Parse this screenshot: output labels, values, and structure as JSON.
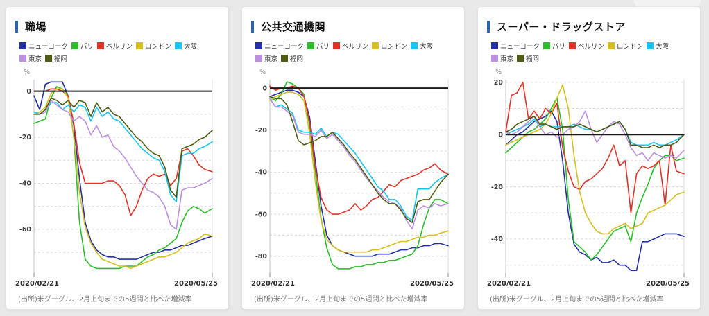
{
  "page_background": "#e9e9ea",
  "accent_color": "#2a66ad",
  "x_tick_labels": [
    "2020/02/21",
    "2020/05/25"
  ],
  "source_note": "(出所)米グーグル、2月上旬までの5週間と比べた増減率",
  "chart_data": [
    {
      "type": "line",
      "title": "職場",
      "ylabel": "%",
      "x_unit": "days since 2020/02/21",
      "x_tick_labels": [
        "2020/02/21",
        "2020/05/25"
      ],
      "source": "(出所)米グーグル、2月上旬までの5週間と比べた増減率",
      "y_ticks": [
        0,
        -20,
        -40,
        -60
      ],
      "ylim": [
        5,
        -79
      ],
      "grid_interval": 10,
      "x": [
        0,
        3,
        6,
        9,
        12,
        15,
        18,
        21,
        24,
        27,
        30,
        33,
        36,
        39,
        42,
        45,
        48,
        51,
        54,
        57,
        60,
        63,
        66,
        69,
        72,
        75,
        78,
        81,
        84,
        87,
        90,
        94
      ],
      "series": [
        {
          "name": "ニューヨーク",
          "key": "new-york",
          "color": "#2431a5",
          "values": [
            -2,
            -8,
            3,
            4,
            4,
            4,
            -2,
            -15,
            -38,
            -57,
            -65,
            -69,
            -71,
            -72,
            -72,
            -73,
            -73,
            -73,
            -73,
            -72,
            -71,
            -70,
            -70,
            -69,
            -69,
            -68,
            -67,
            -67,
            -66,
            -65,
            -64,
            -63
          ]
        },
        {
          "name": "パリ",
          "key": "paris",
          "color": "#2abf2a",
          "values": [
            -14,
            -13,
            -12,
            -3,
            2,
            1,
            -2,
            -20,
            -57,
            -73,
            -76,
            -77,
            -77,
            -77,
            -77,
            -77,
            -76,
            -76,
            -76,
            -74,
            -72,
            -71,
            -69,
            -68,
            -66,
            -64,
            -57,
            -52,
            -50,
            -51,
            -53,
            -51
          ]
        },
        {
          "name": "ベルリン",
          "key": "berlin",
          "color": "#e23228",
          "values": [
            0,
            0,
            0,
            1,
            1,
            0,
            -2,
            -14,
            -31,
            -40,
            -40,
            -40,
            -40,
            -39,
            -39,
            -41,
            -45,
            -54,
            -50,
            -43,
            -38,
            -36,
            -37,
            -36,
            -41,
            -38,
            -26,
            -25,
            -28,
            -32,
            -34,
            -35
          ]
        },
        {
          "name": "ロンドン",
          "key": "london",
          "color": "#d6bf1e",
          "values": [
            -10,
            -9,
            -7,
            -1,
            1,
            1,
            -3,
            -20,
            -44,
            -59,
            -66,
            -70,
            -73,
            -74,
            -75,
            -76,
            -76,
            -77,
            -76,
            -75,
            -74,
            -73,
            -72,
            -72,
            -71,
            -70,
            -68,
            -66,
            -65,
            -64,
            -62,
            -63
          ]
        },
        {
          "name": "大阪",
          "key": "osaka",
          "color": "#17c5f2",
          "values": [
            -9,
            -10,
            -9,
            -5,
            -5,
            -8,
            -6,
            -9,
            -6,
            -7,
            -13,
            -7,
            -11,
            -9,
            -12,
            -13,
            -16,
            -19,
            -22,
            -25,
            -27,
            -29,
            -30,
            -35,
            -45,
            -48,
            -28,
            -27,
            -27,
            -25,
            -24,
            -22
          ]
        },
        {
          "name": "東京",
          "key": "tokyo",
          "color": "#bd8fe0",
          "values": [
            -10,
            -10,
            -9,
            -4,
            -6,
            -8,
            -9,
            -13,
            -11,
            -13,
            -19,
            -15,
            -20,
            -19,
            -24,
            -26,
            -29,
            -33,
            -37,
            -40,
            -43,
            -44,
            -46,
            -50,
            -58,
            -60,
            -43,
            -42,
            -42,
            -41,
            -40,
            -38
          ]
        },
        {
          "name": "福岡",
          "key": "fukuoka",
          "color": "#4f5c14",
          "values": [
            -10,
            -10,
            -8,
            -3,
            -4,
            -6,
            -4,
            -7,
            -4,
            -5,
            -11,
            -5,
            -9,
            -7,
            -10,
            -11,
            -14,
            -17,
            -20,
            -22,
            -25,
            -27,
            -28,
            -33,
            -43,
            -46,
            -25,
            -24,
            -23,
            -21,
            -20,
            -17
          ]
        }
      ]
    },
    {
      "type": "line",
      "title": "公共交通機関",
      "ylabel": "%",
      "x_unit": "days since 2020/02/21",
      "x_tick_labels": [
        "2020/02/21",
        "2020/05/25"
      ],
      "source": "(出所)米グーグル、2月上旬までの5週間と比べた増減率",
      "y_ticks": [
        0,
        -20,
        -40,
        -60,
        -80
      ],
      "ylim": [
        4,
        -88
      ],
      "grid_interval": 10,
      "x": [
        0,
        3,
        6,
        9,
        12,
        15,
        18,
        21,
        24,
        27,
        30,
        33,
        36,
        39,
        42,
        45,
        48,
        51,
        54,
        57,
        60,
        63,
        66,
        69,
        72,
        75,
        78,
        81,
        84,
        87,
        90,
        94
      ],
      "series": [
        {
          "name": "ニューヨーク",
          "key": "new-york",
          "color": "#2431a5",
          "values": [
            -4,
            -3,
            -2,
            -1,
            -1,
            -2,
            -4,
            -14,
            -35,
            -56,
            -70,
            -75,
            -77,
            -78,
            -79,
            -80,
            -80,
            -80,
            -80,
            -79,
            -79,
            -79,
            -78,
            -77,
            -77,
            -76,
            -76,
            -75,
            -75,
            -74,
            -74,
            -75
          ]
        },
        {
          "name": "パリ",
          "key": "paris",
          "color": "#2abf2a",
          "values": [
            -4,
            -6,
            -3,
            3,
            2,
            0,
            -3,
            -18,
            -40,
            -62,
            -76,
            -84,
            -86,
            -86,
            -86,
            -85,
            -85,
            -84,
            -84,
            -83,
            -83,
            -82,
            -82,
            -81,
            -80,
            -79,
            -75,
            -65,
            -57,
            -53,
            -53,
            -55
          ]
        },
        {
          "name": "ベルリン",
          "key": "berlin",
          "color": "#e23228",
          "values": [
            1,
            -1,
            0,
            0,
            1,
            0,
            -4,
            -16,
            -38,
            -52,
            -58,
            -60,
            -60,
            -59,
            -58,
            -55,
            -58,
            -56,
            -53,
            -52,
            -49,
            -46,
            -47,
            -44,
            -43,
            -42,
            -41,
            -39,
            -38,
            -36,
            -39,
            -41
          ]
        },
        {
          "name": "ロンドン",
          "key": "london",
          "color": "#d6bf1e",
          "values": [
            -6,
            -4,
            -3,
            -2,
            -2,
            -3,
            -6,
            -22,
            -45,
            -63,
            -72,
            -75,
            -77,
            -78,
            -78,
            -78,
            -78,
            -78,
            -77,
            -77,
            -76,
            -75,
            -74,
            -73,
            -73,
            -72,
            -71,
            -71,
            -70,
            -70,
            -69,
            -68
          ]
        },
        {
          "name": "大阪",
          "key": "osaka",
          "color": "#17c5f2",
          "values": [
            -5,
            -9,
            -8,
            -10,
            -12,
            -20,
            -21,
            -21,
            -22,
            -19,
            -23,
            -21,
            -22,
            -25,
            -28,
            -31,
            -35,
            -39,
            -43,
            -47,
            -49,
            -53,
            -53,
            -56,
            -61,
            -63,
            -48,
            -48,
            -48,
            -45,
            -43,
            -41
          ]
        },
        {
          "name": "東京",
          "key": "tokyo",
          "color": "#bd8fe0",
          "values": [
            -5,
            -9,
            -9,
            -11,
            -13,
            -21,
            -22,
            -22,
            -23,
            -20,
            -24,
            -22,
            -25,
            -28,
            -32,
            -35,
            -39,
            -43,
            -46,
            -49,
            -52,
            -54,
            -55,
            -57,
            -63,
            -67,
            -58,
            -56,
            -57,
            -55,
            -56,
            -55
          ]
        },
        {
          "name": "福岡",
          "key": "fukuoka",
          "color": "#4f5c14",
          "values": [
            -4,
            -5,
            -5,
            -8,
            -16,
            -25,
            -27,
            -26,
            -25,
            -23,
            -23,
            -21,
            -24,
            -27,
            -31,
            -34,
            -38,
            -42,
            -46,
            -50,
            -53,
            -55,
            -55,
            -58,
            -62,
            -64,
            -54,
            -53,
            -53,
            -49,
            -45,
            -41
          ]
        }
      ]
    },
    {
      "type": "line",
      "title": "スーパー・ドラッグストア",
      "ylabel": "%",
      "x_unit": "days since 2020/02/21",
      "x_tick_labels": [
        "2020/02/21",
        "2020/05/25"
      ],
      "source": "(出所)米グーグル、2月上旬までの5週間と比べた増減率",
      "y_ticks": [
        20,
        0,
        -20,
        -40
      ],
      "ylim": [
        21,
        -53
      ],
      "grid_interval": 10,
      "x": [
        0,
        3,
        6,
        9,
        12,
        15,
        18,
        21,
        24,
        27,
        30,
        33,
        36,
        39,
        42,
        45,
        48,
        51,
        54,
        57,
        60,
        63,
        66,
        69,
        72,
        75,
        78,
        81,
        84,
        87,
        90,
        94
      ],
      "series": [
        {
          "name": "ニューヨーク",
          "key": "new-york",
          "color": "#2431a5",
          "values": [
            -4,
            -2,
            0,
            1,
            3,
            5,
            6,
            7,
            9,
            5,
            -10,
            -30,
            -42,
            -45,
            -46,
            -48,
            -47,
            -49,
            -49,
            -48,
            -50,
            -50,
            -52,
            -52,
            -41,
            -41,
            -40,
            -39,
            -38,
            -38,
            -38,
            -39
          ]
        },
        {
          "name": "パリ",
          "key": "paris",
          "color": "#2abf2a",
          "values": [
            -7,
            -5,
            -3,
            -1,
            1,
            2,
            4,
            6,
            10,
            14,
            2,
            -25,
            -41,
            -43,
            -45,
            -48,
            -46,
            -43,
            -40,
            -37,
            -36,
            -35,
            -41,
            -30,
            -24,
            -19,
            -13,
            -10,
            -8,
            -8,
            -10,
            -9
          ]
        },
        {
          "name": "ベルリン",
          "key": "berlin",
          "color": "#e23228",
          "values": [
            1,
            15,
            16,
            20,
            6,
            9,
            6,
            10,
            8,
            12,
            -5,
            -14,
            -20,
            -21,
            -18,
            -17,
            -15,
            -13,
            -9,
            -4,
            -12,
            -10,
            -30,
            -15,
            -12,
            -13,
            -12,
            -10,
            -27,
            -4,
            -14,
            -15
          ]
        },
        {
          "name": "ロンドン",
          "key": "london",
          "color": "#d6bf1e",
          "values": [
            -4,
            -3,
            -2,
            -1,
            0,
            1,
            2,
            4,
            8,
            14,
            19,
            10,
            -8,
            -22,
            -30,
            -34,
            -37,
            -38,
            -38,
            -36,
            -35,
            -34,
            -36,
            -35,
            -34,
            -30,
            -29,
            -28,
            -27,
            -25,
            -23,
            -22
          ]
        },
        {
          "name": "大阪",
          "key": "osaka",
          "color": "#17c5f2",
          "values": [
            0,
            1,
            2,
            3,
            4,
            6,
            3,
            4,
            3,
            3,
            3,
            3,
            4,
            3,
            2,
            2,
            1,
            2,
            3,
            4,
            5,
            2,
            -3,
            -4,
            -4,
            -4,
            -3,
            -4,
            -4,
            -3,
            -2,
            0
          ]
        },
        {
          "name": "東京",
          "key": "tokyo",
          "color": "#bd8fe0",
          "values": [
            1,
            0,
            1,
            3,
            5,
            7,
            3,
            0,
            1,
            -1,
            0,
            2,
            3,
            5,
            9,
            2,
            -3,
            0,
            3,
            5,
            4,
            0,
            -5,
            -8,
            -7,
            -10,
            -7,
            -8,
            -9,
            -8,
            -9,
            -6
          ]
        },
        {
          "name": "福岡",
          "key": "fukuoka",
          "color": "#4f5c14",
          "values": [
            1,
            2,
            4,
            5,
            6,
            7,
            4,
            4,
            3,
            2,
            3,
            3,
            3,
            4,
            3,
            2,
            1,
            2,
            3,
            4,
            5,
            2,
            -4,
            -4,
            -5,
            -5,
            -4,
            -5,
            -4,
            -4,
            -3,
            0
          ]
        }
      ]
    }
  ]
}
